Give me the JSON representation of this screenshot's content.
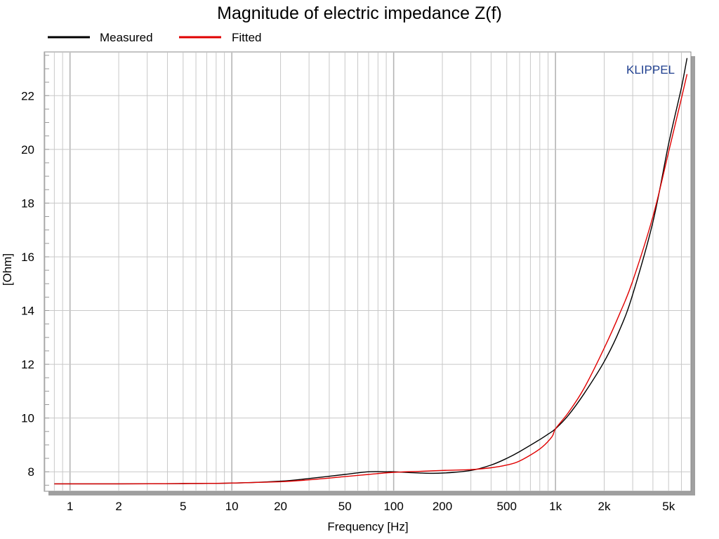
{
  "chart_data": {
    "type": "line",
    "title": "Magnitude of electric impedance Z(f)",
    "xlabel": "Frequency [Hz]",
    "ylabel": "[Ohm]",
    "x_scale": "log",
    "xlim": [
      0.7,
      6800
    ],
    "ylim": [
      7.3,
      23.6
    ],
    "x_ticks": [
      1,
      2,
      5,
      10,
      20,
      50,
      100,
      200,
      500,
      1000,
      2000,
      5000
    ],
    "x_tick_labels": [
      "1",
      "2",
      "5",
      "10",
      "20",
      "50",
      "100",
      "200",
      "500",
      "1k",
      "2k",
      "5k"
    ],
    "y_ticks": [
      8,
      10,
      12,
      14,
      16,
      18,
      20,
      22
    ],
    "y_tick_labels": [
      "8",
      "10",
      "12",
      "14",
      "16",
      "18",
      "20",
      "22"
    ],
    "grid": true,
    "legend_position": "top-left",
    "watermark": "KLIPPEL",
    "colors": {
      "measured": "#000000",
      "fitted": "#e00000",
      "brand": "#1f3f8f",
      "grid": "#c8c8c8",
      "frame_shadow": "#a0a0a0"
    },
    "series": [
      {
        "name": "Measured",
        "x": [
          0.8,
          1,
          2,
          5,
          10,
          20,
          30,
          50,
          70,
          90,
          100,
          150,
          200,
          300,
          400,
          500,
          600,
          800,
          900,
          1000,
          1200,
          1500,
          2000,
          2500,
          3000,
          4000,
          5000,
          6000,
          6500
        ],
        "y": [
          7.55,
          7.55,
          7.55,
          7.56,
          7.58,
          7.65,
          7.75,
          7.9,
          8.0,
          8.0,
          8.0,
          7.95,
          7.95,
          8.05,
          8.25,
          8.5,
          8.75,
          9.2,
          9.4,
          9.6,
          10.1,
          10.9,
          12.1,
          13.3,
          14.6,
          17.3,
          20.2,
          22.3,
          23.4
        ]
      },
      {
        "name": "Fitted",
        "x": [
          0.8,
          1,
          2,
          5,
          10,
          20,
          30,
          50,
          70,
          100,
          150,
          200,
          300,
          400,
          500,
          600,
          800,
          950,
          1000,
          1200,
          1500,
          2000,
          2500,
          3000,
          4000,
          5000,
          6000,
          6500
        ],
        "y": [
          7.55,
          7.55,
          7.55,
          7.56,
          7.58,
          7.63,
          7.7,
          7.82,
          7.9,
          7.98,
          8.02,
          8.05,
          8.08,
          8.15,
          8.25,
          8.4,
          8.85,
          9.3,
          9.6,
          10.2,
          11.1,
          12.6,
          13.9,
          15.1,
          17.5,
          19.9,
          21.9,
          22.8
        ]
      }
    ]
  }
}
